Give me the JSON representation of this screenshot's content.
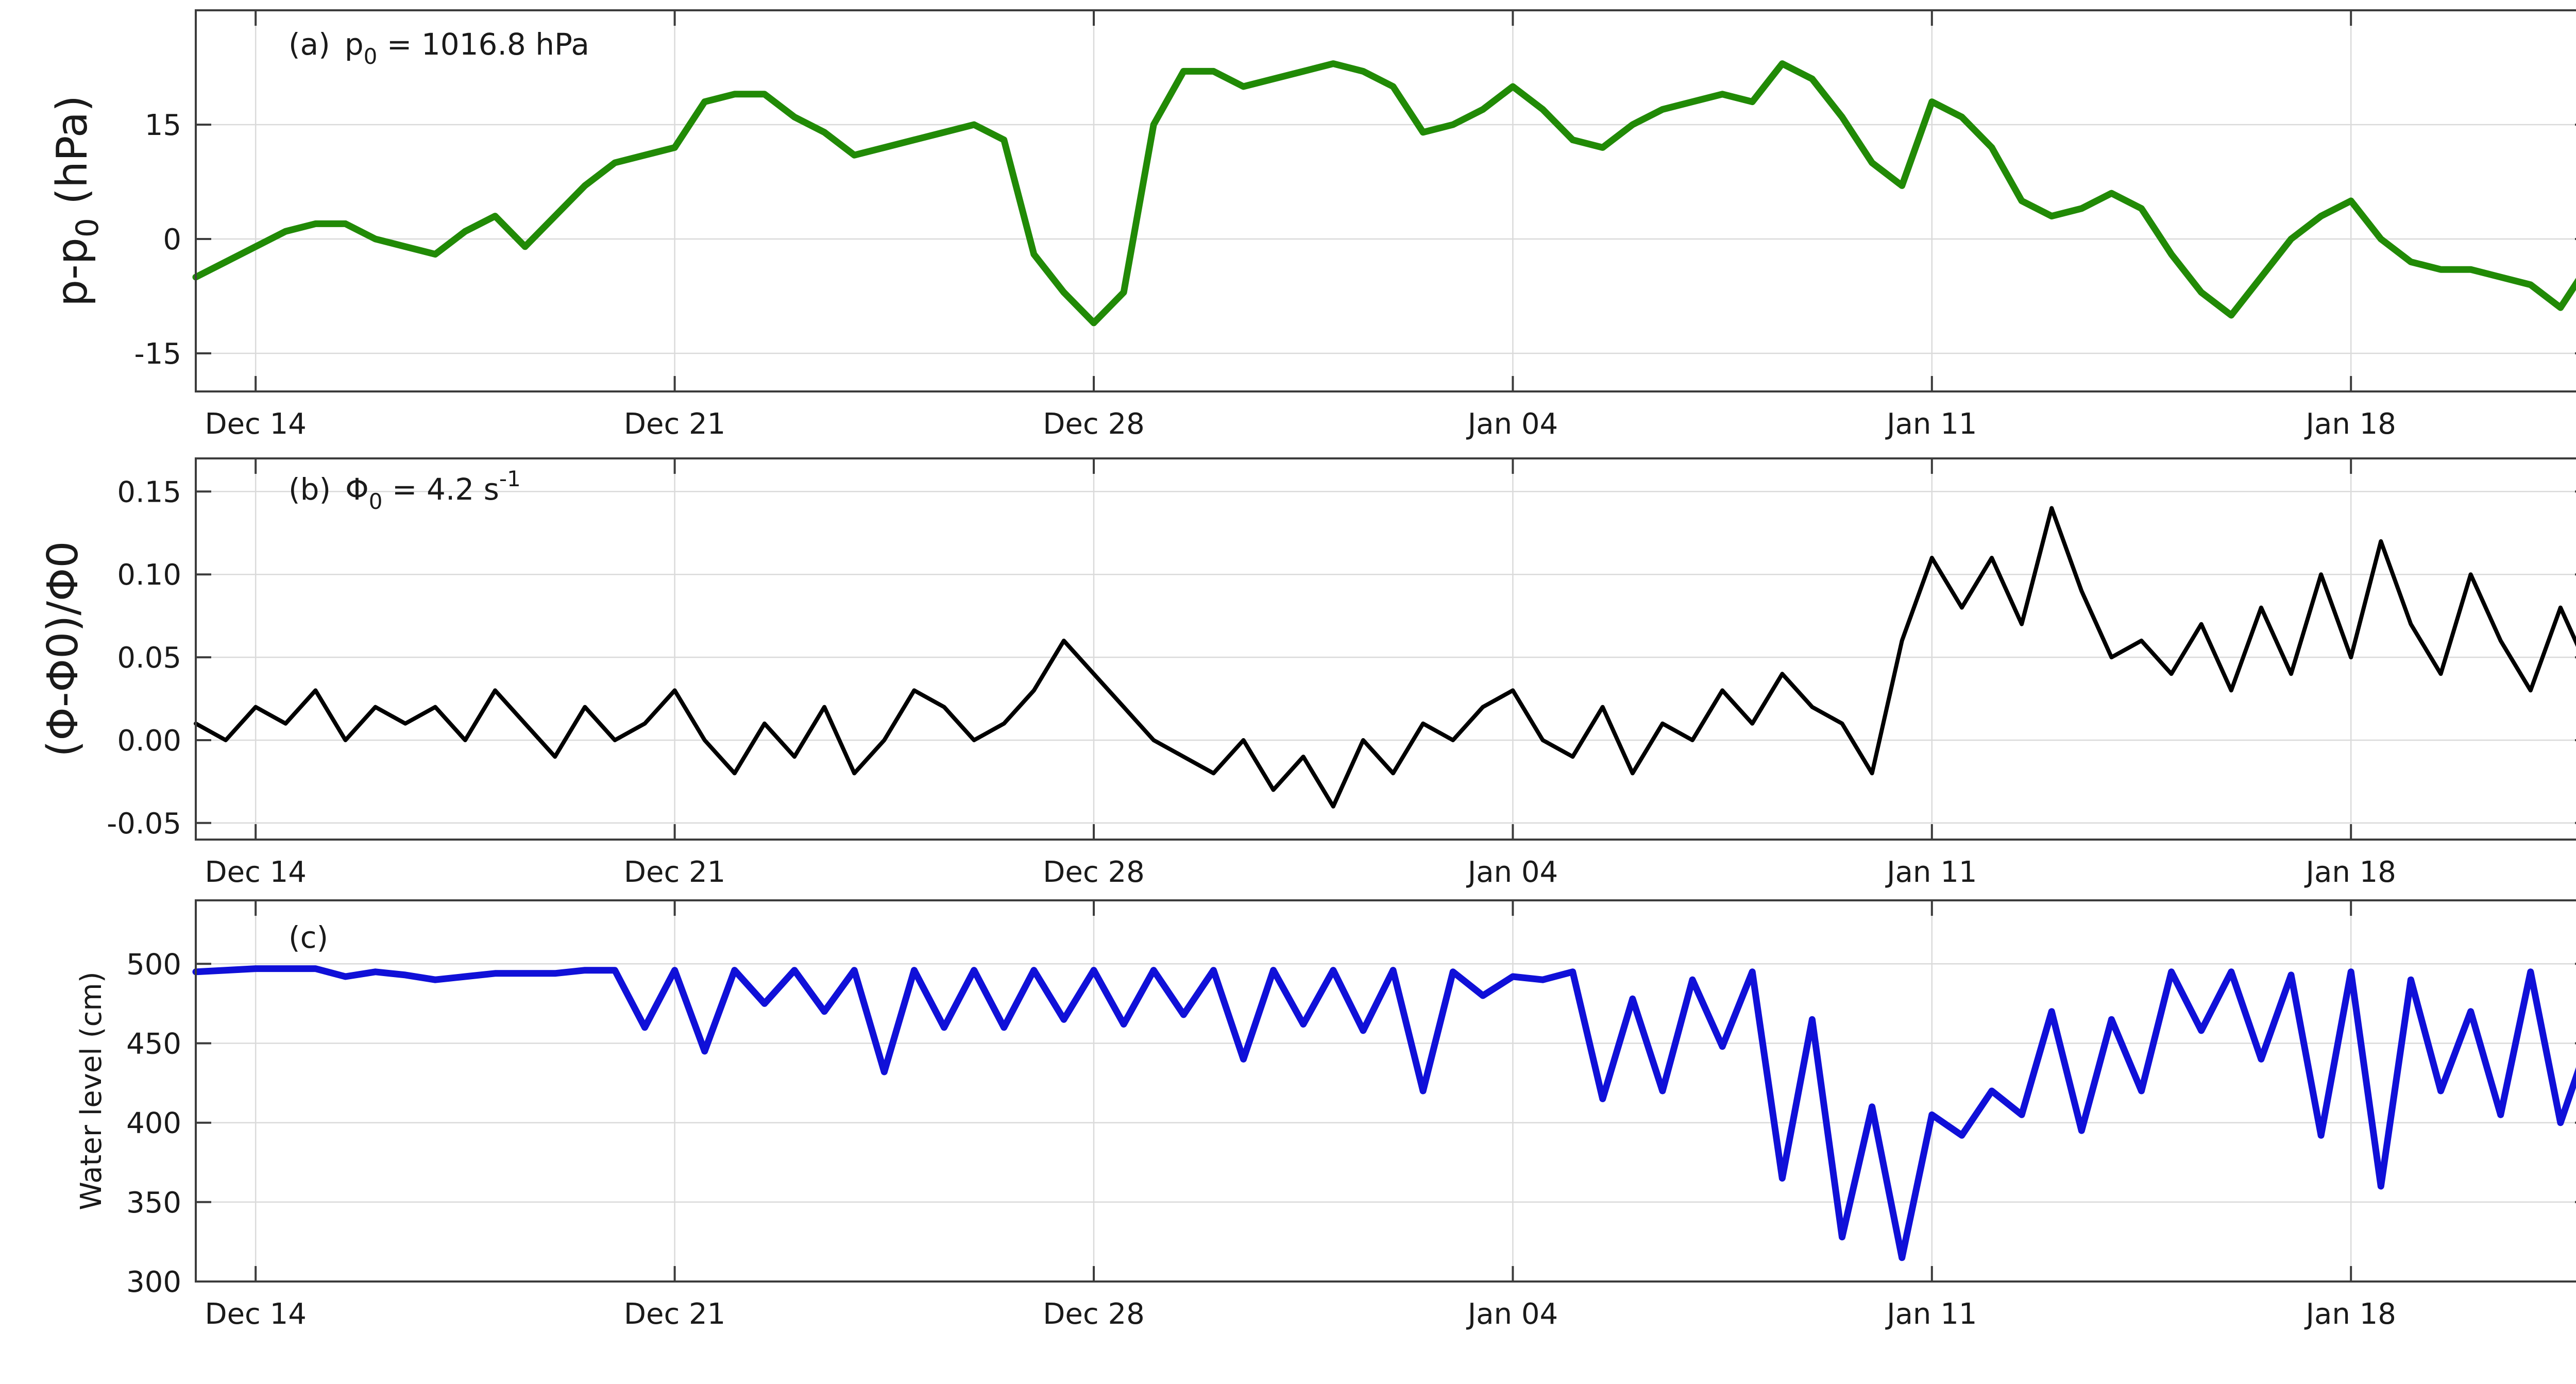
{
  "figure": {
    "x_tick_labels": [
      "Dec 14",
      "Dec 21",
      "Dec 28",
      "Jan 04",
      "Jan 11",
      "Jan 18"
    ],
    "colors": {
      "panel_a": "#218a06",
      "panel_b": "#000000",
      "panel_c": "#1010d8",
      "grid": "#dadada",
      "axes": "#3c3c3c"
    }
  },
  "chart_data": [
    {
      "type": "line",
      "panel_label": "(a)",
      "annotation": {
        "prefix": "p",
        "subscript": "0",
        "text": " = 1016.8 hPa"
      },
      "ylabel": {
        "main": "p-p",
        "subscript": "0",
        "suffix": "  (hPa)"
      },
      "x_tick_labels": [
        "Dec 14",
        "Dec 21",
        "Dec 28",
        "Jan 04",
        "Jan 11",
        "Jan 18"
      ],
      "xlim": [
        "2021-12-13",
        "2022-01-22"
      ],
      "ylim": [
        -20,
        30
      ],
      "yticks": [
        -15,
        0,
        15
      ],
      "ytick_labels": [
        "-15",
        "0",
        "15"
      ],
      "grid": true,
      "color": "#218a06",
      "x": [
        "2021-12-13 00:00",
        "2021-12-13 12:00",
        "2021-12-14 00:00",
        "2021-12-14 12:00",
        "2021-12-15 00:00",
        "2021-12-15 12:00",
        "2021-12-16 00:00",
        "2021-12-16 12:00",
        "2021-12-17 00:00",
        "2021-12-17 12:00",
        "2021-12-18 00:00",
        "2021-12-18 12:00",
        "2021-12-19 00:00",
        "2021-12-19 12:00",
        "2021-12-20 00:00",
        "2021-12-20 12:00",
        "2021-12-21 00:00",
        "2021-12-21 12:00",
        "2021-12-22 00:00",
        "2021-12-22 12:00",
        "2021-12-23 00:00",
        "2021-12-23 12:00",
        "2021-12-24 00:00",
        "2021-12-24 12:00",
        "2021-12-25 00:00",
        "2021-12-25 12:00",
        "2021-12-26 00:00",
        "2021-12-26 12:00",
        "2021-12-27 00:00",
        "2021-12-27 12:00",
        "2021-12-28 00:00",
        "2021-12-28 12:00",
        "2021-12-29 00:00",
        "2021-12-29 12:00",
        "2021-12-30 00:00",
        "2021-12-30 12:00",
        "2021-12-31 00:00",
        "2021-12-31 12:00",
        "2022-01-01 00:00",
        "2022-01-01 12:00",
        "2022-01-02 00:00",
        "2022-01-02 12:00",
        "2022-01-03 00:00",
        "2022-01-03 12:00",
        "2022-01-04 00:00",
        "2022-01-04 12:00",
        "2022-01-05 00:00",
        "2022-01-05 12:00",
        "2022-01-06 00:00",
        "2022-01-06 12:00",
        "2022-01-07 00:00",
        "2022-01-07 12:00",
        "2022-01-08 00:00",
        "2022-01-08 12:00",
        "2022-01-09 00:00",
        "2022-01-09 12:00",
        "2022-01-10 00:00",
        "2022-01-10 12:00",
        "2022-01-11 00:00",
        "2022-01-11 12:00",
        "2022-01-12 00:00",
        "2022-01-12 12:00",
        "2022-01-13 00:00",
        "2022-01-13 12:00",
        "2022-01-14 00:00",
        "2022-01-14 12:00",
        "2022-01-15 00:00",
        "2022-01-15 12:00",
        "2022-01-16 00:00",
        "2022-01-16 12:00",
        "2022-01-17 00:00",
        "2022-01-17 12:00",
        "2022-01-18 00:00",
        "2022-01-18 12:00",
        "2022-01-19 00:00",
        "2022-01-19 12:00",
        "2022-01-20 00:00",
        "2022-01-20 12:00",
        "2022-01-21 00:00",
        "2022-01-21 12:00",
        "2022-01-22 00:00"
      ],
      "y": [
        -5,
        -3,
        -1,
        1,
        2,
        2,
        0,
        -1,
        -2,
        1,
        3,
        -1,
        3,
        7,
        10,
        11,
        12,
        18,
        19,
        19,
        16,
        14,
        11,
        12,
        13,
        14,
        15,
        13,
        -2,
        -7,
        -11,
        -7,
        15,
        22,
        22,
        20,
        21,
        22,
        23,
        22,
        20,
        14,
        15,
        17,
        20,
        17,
        13,
        12,
        15,
        17,
        18,
        19,
        18,
        23,
        21,
        16,
        10,
        7,
        18,
        16,
        12,
        5,
        3,
        4,
        6,
        4,
        -2,
        -7,
        -10,
        -5,
        0,
        3,
        5,
        0,
        -3,
        -4,
        -4,
        -5,
        -6,
        -9,
        -3
      ]
    },
    {
      "type": "line",
      "panel_label": "(b)",
      "annotation": {
        "prefix": "Φ",
        "subscript": "0",
        "text": " = 4.2 s",
        "superscript": "-1"
      },
      "ylabel": {
        "text": "(Φ-Φ0)/Φ0"
      },
      "x_tick_labels": [
        "Dec 14",
        "Dec 21",
        "Dec 28",
        "Jan 04",
        "Jan 11",
        "Jan 18"
      ],
      "xlim": [
        "2021-12-13",
        "2022-01-22"
      ],
      "ylim": [
        -0.06,
        0.17
      ],
      "yticks": [
        -0.05,
        0.0,
        0.05,
        0.1,
        0.15
      ],
      "ytick_labels": [
        "-0.05",
        "0.00",
        "0.05",
        "0.10",
        "0.15"
      ],
      "grid": true,
      "color": "#000000",
      "x": [
        "2021-12-13 00:00",
        "2021-12-13 12:00",
        "2021-12-14 00:00",
        "2021-12-14 12:00",
        "2021-12-15 00:00",
        "2021-12-15 12:00",
        "2021-12-16 00:00",
        "2021-12-16 12:00",
        "2021-12-17 00:00",
        "2021-12-17 12:00",
        "2021-12-18 00:00",
        "2021-12-18 12:00",
        "2021-12-19 00:00",
        "2021-12-19 12:00",
        "2021-12-20 00:00",
        "2021-12-20 12:00",
        "2021-12-21 00:00",
        "2021-12-21 12:00",
        "2021-12-22 00:00",
        "2021-12-22 12:00",
        "2021-12-23 00:00",
        "2021-12-23 12:00",
        "2021-12-24 00:00",
        "2021-12-24 12:00",
        "2021-12-25 00:00",
        "2021-12-25 12:00",
        "2021-12-26 00:00",
        "2021-12-26 12:00",
        "2021-12-27 00:00",
        "2021-12-27 12:00",
        "2021-12-28 00:00",
        "2021-12-28 12:00",
        "2021-12-29 00:00",
        "2021-12-29 12:00",
        "2021-12-30 00:00",
        "2021-12-30 12:00",
        "2021-12-31 00:00",
        "2021-12-31 12:00",
        "2022-01-01 00:00",
        "2022-01-01 12:00",
        "2022-01-02 00:00",
        "2022-01-02 12:00",
        "2022-01-03 00:00",
        "2022-01-03 12:00",
        "2022-01-04 00:00",
        "2022-01-04 12:00",
        "2022-01-05 00:00",
        "2022-01-05 12:00",
        "2022-01-06 00:00",
        "2022-01-06 12:00",
        "2022-01-07 00:00",
        "2022-01-07 12:00",
        "2022-01-08 00:00",
        "2022-01-08 12:00",
        "2022-01-09 00:00",
        "2022-01-09 12:00",
        "2022-01-10 00:00",
        "2022-01-10 12:00",
        "2022-01-11 00:00",
        "2022-01-11 12:00",
        "2022-01-12 00:00",
        "2022-01-12 12:00",
        "2022-01-13 00:00",
        "2022-01-13 12:00",
        "2022-01-14 00:00",
        "2022-01-14 12:00",
        "2022-01-15 00:00",
        "2022-01-15 12:00",
        "2022-01-16 00:00",
        "2022-01-16 12:00",
        "2022-01-17 00:00",
        "2022-01-17 12:00",
        "2022-01-18 00:00",
        "2022-01-18 12:00",
        "2022-01-19 00:00",
        "2022-01-19 12:00",
        "2022-01-20 00:00",
        "2022-01-20 12:00",
        "2022-01-21 00:00",
        "2022-01-21 12:00",
        "2022-01-22 00:00"
      ],
      "y": [
        0.01,
        0.0,
        0.02,
        0.01,
        0.03,
        0.0,
        0.02,
        0.01,
        0.02,
        0.0,
        0.03,
        0.01,
        -0.01,
        0.02,
        0.0,
        0.01,
        0.03,
        0.0,
        -0.02,
        0.01,
        -0.01,
        0.02,
        -0.02,
        0.0,
        0.03,
        0.02,
        0.0,
        0.01,
        0.03,
        0.06,
        0.04,
        0.02,
        0.0,
        -0.01,
        -0.02,
        0.0,
        -0.03,
        -0.01,
        -0.04,
        0.0,
        -0.02,
        0.01,
        0.0,
        0.02,
        0.03,
        0.0,
        -0.01,
        0.02,
        -0.02,
        0.01,
        0.0,
        0.03,
        0.01,
        0.04,
        0.02,
        0.01,
        -0.02,
        0.06,
        0.11,
        0.08,
        0.11,
        0.07,
        0.14,
        0.09,
        0.05,
        0.06,
        0.04,
        0.07,
        0.03,
        0.08,
        0.04,
        0.1,
        0.05,
        0.12,
        0.07,
        0.04,
        0.1,
        0.06,
        0.03,
        0.08,
        0.04
      ]
    },
    {
      "type": "line",
      "panel_label": "(c)",
      "ylabel": {
        "text": "Water level (cm)"
      },
      "x_tick_labels": [
        "Dec 14",
        "Dec 21",
        "Dec 28",
        "Jan 04",
        "Jan 11",
        "Jan 18"
      ],
      "xlim": [
        "2021-12-13",
        "2022-01-22"
      ],
      "ylim": [
        300,
        540
      ],
      "yticks": [
        300,
        350,
        400,
        450,
        500
      ],
      "ytick_labels": [
        "300",
        "350",
        "400",
        "450",
        "500"
      ],
      "grid": true,
      "color": "#1010d8",
      "x": [
        "2021-12-13 00:00",
        "2021-12-13 12:00",
        "2021-12-14 00:00",
        "2021-12-14 12:00",
        "2021-12-15 00:00",
        "2021-12-15 12:00",
        "2021-12-16 00:00",
        "2021-12-16 12:00",
        "2021-12-17 00:00",
        "2021-12-17 12:00",
        "2021-12-18 00:00",
        "2021-12-18 12:00",
        "2021-12-19 00:00",
        "2021-12-19 12:00",
        "2021-12-20 00:00",
        "2021-12-20 12:00",
        "2021-12-21 00:00",
        "2021-12-21 12:00",
        "2021-12-22 00:00",
        "2021-12-22 12:00",
        "2021-12-23 00:00",
        "2021-12-23 12:00",
        "2021-12-24 00:00",
        "2021-12-24 12:00",
        "2021-12-25 00:00",
        "2021-12-25 12:00",
        "2021-12-26 00:00",
        "2021-12-26 12:00",
        "2021-12-27 00:00",
        "2021-12-27 12:00",
        "2021-12-28 00:00",
        "2021-12-28 12:00",
        "2021-12-29 00:00",
        "2021-12-29 12:00",
        "2021-12-30 00:00",
        "2021-12-30 12:00",
        "2021-12-31 00:00",
        "2021-12-31 12:00",
        "2022-01-01 00:00",
        "2022-01-01 12:00",
        "2022-01-02 00:00",
        "2022-01-02 12:00",
        "2022-01-03 00:00",
        "2022-01-03 12:00",
        "2022-01-04 00:00",
        "2022-01-04 12:00",
        "2022-01-05 00:00",
        "2022-01-05 12:00",
        "2022-01-06 00:00",
        "2022-01-06 12:00",
        "2022-01-07 00:00",
        "2022-01-07 12:00",
        "2022-01-08 00:00",
        "2022-01-08 12:00",
        "2022-01-09 00:00",
        "2022-01-09 12:00",
        "2022-01-10 00:00",
        "2022-01-10 12:00",
        "2022-01-11 00:00",
        "2022-01-11 12:00",
        "2022-01-12 00:00",
        "2022-01-12 12:00",
        "2022-01-13 00:00",
        "2022-01-13 12:00",
        "2022-01-14 00:00",
        "2022-01-14 12:00",
        "2022-01-15 00:00",
        "2022-01-15 12:00",
        "2022-01-16 00:00",
        "2022-01-16 12:00",
        "2022-01-17 00:00",
        "2022-01-17 12:00",
        "2022-01-18 00:00",
        "2022-01-18 12:00",
        "2022-01-19 00:00",
        "2022-01-19 12:00",
        "2022-01-20 00:00",
        "2022-01-20 12:00",
        "2022-01-21 00:00",
        "2022-01-21 12:00",
        "2022-01-22 00:00"
      ],
      "y": [
        495,
        496,
        497,
        497,
        497,
        492,
        495,
        493,
        490,
        492,
        494,
        494,
        494,
        496,
        496,
        460,
        496,
        445,
        496,
        475,
        496,
        470,
        496,
        432,
        496,
        460,
        496,
        460,
        496,
        465,
        496,
        462,
        496,
        468,
        496,
        440,
        496,
        462,
        496,
        458,
        496,
        420,
        495,
        480,
        492,
        490,
        495,
        415,
        478,
        420,
        490,
        448,
        495,
        365,
        465,
        328,
        410,
        315,
        405,
        392,
        420,
        405,
        470,
        395,
        465,
        420,
        495,
        458,
        495,
        440,
        493,
        392,
        495,
        360,
        490,
        420,
        470,
        405,
        495,
        400,
        455
      ]
    }
  ]
}
